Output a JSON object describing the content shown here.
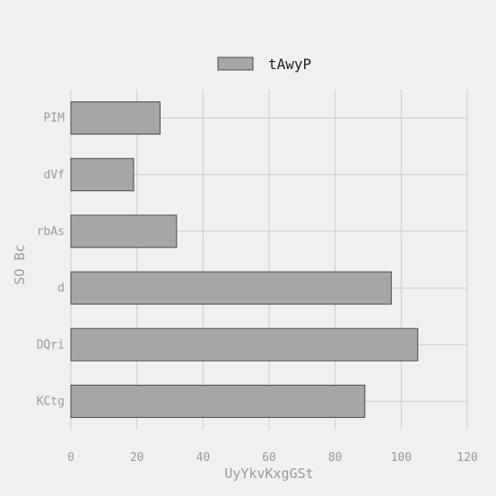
{
  "chart_data": {
    "type": "bar",
    "orientation": "horizontal",
    "categories": [
      "PIM",
      "dVf",
      "rbAs",
      "d",
      "DQri",
      "KCtg"
    ],
    "series": [
      {
        "name": "tAwyP",
        "values": [
          27,
          19,
          32,
          97,
          105,
          89
        ]
      }
    ],
    "xlabel": "UyYkvKxgGSt",
    "ylabel": "SO Bc",
    "xlim": [
      0,
      120
    ],
    "xticks": [
      0,
      20,
      40,
      60,
      80,
      100,
      120
    ],
    "grid": true,
    "legend_position": "top-center",
    "colors": {
      "bar_fill": "#a6a6a6",
      "bar_edge": "#4d4d4d",
      "background": "#f0f0f0",
      "grid": "#cbcbcb"
    }
  }
}
